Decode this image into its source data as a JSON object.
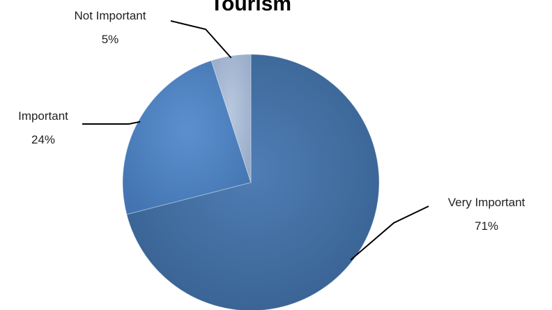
{
  "chart_data": {
    "type": "pie",
    "title": "Tourism",
    "slices": [
      {
        "label": "Very Important",
        "value": 71,
        "value_label": "71%",
        "color": "#3f6a9f"
      },
      {
        "label": "Important",
        "value": 24,
        "value_label": "24%",
        "color": "#4a7fbe"
      },
      {
        "label": "Not Important",
        "value": 5,
        "value_label": "5%",
        "color": "#a8b9d3"
      }
    ],
    "start_angle_deg": 0,
    "direction": "clockwise",
    "data_labels": "outside with leader lines",
    "legend": "none"
  }
}
